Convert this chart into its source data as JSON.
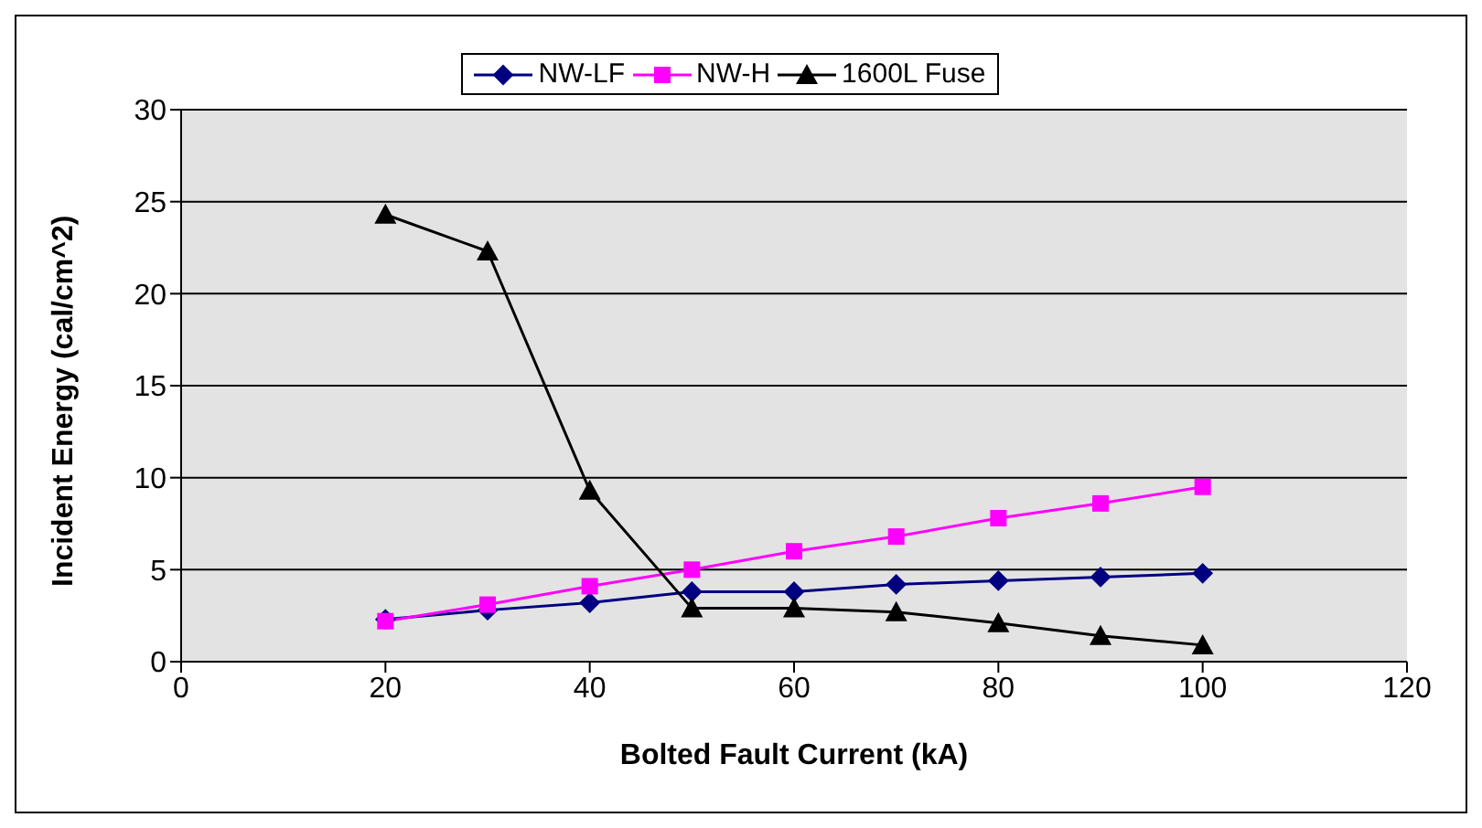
{
  "chart_data": {
    "type": "line",
    "xlabel": "Bolted Fault Current (kA)",
    "ylabel": "Incident Energy (cal/cm^2)",
    "x": [
      20,
      30,
      40,
      50,
      60,
      70,
      80,
      90,
      100
    ],
    "series": [
      {
        "name": "NW-LF",
        "color": "#000080",
        "marker": "diamond",
        "values": [
          2.3,
          2.8,
          3.2,
          3.8,
          3.8,
          4.2,
          4.4,
          4.6,
          4.8
        ]
      },
      {
        "name": "NW-H",
        "color": "#ff00ff",
        "marker": "square",
        "values": [
          2.2,
          3.1,
          4.1,
          5.0,
          6.0,
          6.8,
          7.8,
          8.6,
          9.5
        ]
      },
      {
        "name": "1600L Fuse",
        "color": "#000000",
        "marker": "triangle",
        "values": [
          24.3,
          22.3,
          9.3,
          2.9,
          2.9,
          2.7,
          2.1,
          1.4,
          0.9
        ]
      }
    ],
    "xlim": [
      0,
      120
    ],
    "xticks": [
      0,
      20,
      40,
      60,
      80,
      100,
      120
    ],
    "ylim": [
      0,
      30
    ],
    "yticks": [
      0,
      5,
      10,
      15,
      20,
      25,
      30
    ],
    "grid": "y",
    "legend": "top",
    "line_style": "solid"
  }
}
